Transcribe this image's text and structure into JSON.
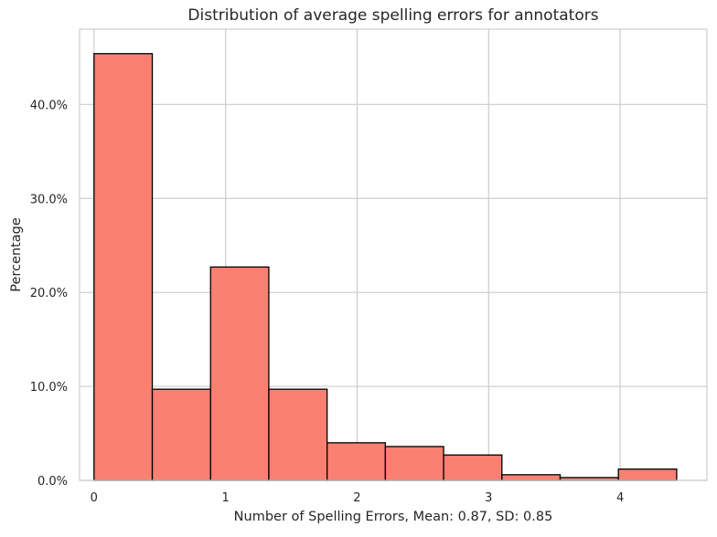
{
  "chart_data": {
    "type": "bar",
    "title": "Distribution of average spelling errors for annotators",
    "xlabel": "Number of Spelling Errors, Mean: 0.87, SD: 0.85",
    "ylabel": "Percentage",
    "xlim": [
      -0.11,
      4.66
    ],
    "ylim": [
      0,
      0.48
    ],
    "grid": true,
    "xticks": [
      0,
      1,
      2,
      3,
      4
    ],
    "xtick_labels": [
      "0",
      "1",
      "2",
      "3",
      "4"
    ],
    "yticks": [
      0,
      0.1,
      0.2,
      0.3,
      0.4
    ],
    "ytick_labels": [
      "0.0%",
      "10.0%",
      "20.0%",
      "30.0%",
      "40.0%"
    ],
    "bin_edges": [
      0,
      0.443,
      0.886,
      1.329,
      1.772,
      2.215,
      2.658,
      3.101,
      3.544,
      3.987,
      4.43
    ],
    "values": [
      0.454,
      0.097,
      0.227,
      0.097,
      0.04,
      0.036,
      0.027,
      0.006,
      0.003,
      0.012
    ],
    "bar_color": "#fa8072",
    "edge_color": "#000000",
    "grid_color": "#cccccc"
  }
}
